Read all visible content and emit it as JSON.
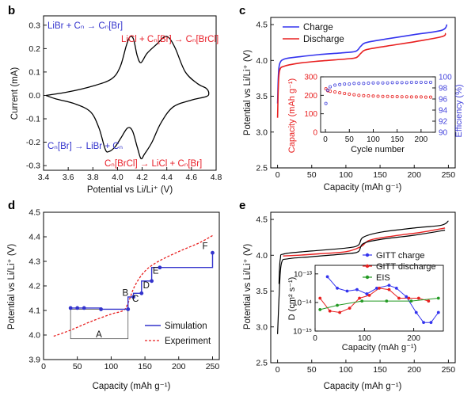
{
  "chart_data": [
    {
      "panel": "b",
      "type": "line",
      "xlabel": "Potential vs Li/Li⁺ (V)",
      "ylabel": "Current (mA)",
      "xlim": [
        3.4,
        4.8
      ],
      "ylim": [
        -0.32,
        0.34
      ],
      "xticks": [
        "3.4",
        "3.6",
        "3.8",
        "4.0",
        "4.2",
        "4.4",
        "4.6",
        "4.8"
      ],
      "yticks": [
        "0.3",
        "0.2",
        "0.1",
        "0.0",
        "-0.1",
        "-0.2",
        "-0.3"
      ],
      "colors": {
        "curve": "#000000",
        "blue_text": "#3333cc",
        "red_text": "#e8202a"
      },
      "annotations": {
        "top_left": "LiBr + Cₙ → Cₙ[Br]",
        "top_right": "LiCl + Cₙ[Br] → Cₙ[BrCl]",
        "bottom_left": "Cₙ[Br] → LiBr + Cₙ",
        "bottom_right": "Cₙ[BrCl] → LiCl + Cₙ[Br]"
      },
      "series": [
        {
          "values": [
            [
              3.42,
              0.0
            ],
            [
              3.6,
              0.015
            ],
            [
              3.8,
              0.04
            ],
            [
              3.95,
              0.07
            ],
            [
              4.02,
              0.12
            ],
            [
              4.07,
              0.21
            ],
            [
              4.1,
              0.25
            ],
            [
              4.13,
              0.24
            ],
            [
              4.16,
              0.17
            ],
            [
              4.19,
              0.14
            ],
            [
              4.24,
              0.18
            ],
            [
              4.32,
              0.22
            ],
            [
              4.38,
              0.25
            ],
            [
              4.42,
              0.245
            ],
            [
              4.47,
              0.2
            ],
            [
              4.55,
              0.1
            ],
            [
              4.65,
              0.05
            ],
            [
              4.72,
              0.03
            ],
            [
              4.74,
              0.01
            ],
            [
              4.72,
              -0.005
            ],
            [
              4.6,
              -0.02
            ],
            [
              4.45,
              -0.05
            ],
            [
              4.35,
              -0.12
            ],
            [
              4.28,
              -0.2
            ],
            [
              4.22,
              -0.25
            ],
            [
              4.19,
              -0.27
            ],
            [
              4.16,
              -0.22
            ],
            [
              4.12,
              -0.15
            ],
            [
              4.08,
              -0.14
            ],
            [
              4.03,
              -0.18
            ],
            [
              3.98,
              -0.22
            ],
            [
              3.93,
              -0.24
            ],
            [
              3.9,
              -0.23
            ],
            [
              3.85,
              -0.14
            ],
            [
              3.78,
              -0.07
            ],
            [
              3.65,
              -0.035
            ],
            [
              3.5,
              -0.015
            ],
            [
              3.42,
              0.0
            ]
          ]
        }
      ]
    },
    {
      "panel": "c",
      "type": "line",
      "xlabel": "Capacity (mAh g⁻¹)",
      "ylabel": "Potential vs Li/Li⁺ (V)",
      "xlim": [
        -10,
        260
      ],
      "ylim": [
        2.5,
        4.6
      ],
      "xticks": [
        "0",
        "50",
        "100",
        "150",
        "200",
        "250"
      ],
      "yticks": [
        "2.5",
        "3.0",
        "3.5",
        "4.0",
        "4.5"
      ],
      "legend": [
        "Charge",
        "Discharge"
      ],
      "legend_position": "top-left",
      "series": [
        {
          "name": "Charge",
          "color": "#3333ee",
          "values": [
            [
              0,
              3.4
            ],
            [
              1,
              3.75
            ],
            [
              3,
              3.95
            ],
            [
              10,
              4.02
            ],
            [
              30,
              4.05
            ],
            [
              60,
              4.08
            ],
            [
              100,
              4.11
            ],
            [
              115,
              4.13
            ],
            [
              122,
              4.2
            ],
            [
              130,
              4.25
            ],
            [
              160,
              4.3
            ],
            [
              200,
              4.36
            ],
            [
              240,
              4.42
            ],
            [
              248,
              4.5
            ]
          ]
        },
        {
          "name": "Discharge",
          "color": "#e82020",
          "values": [
            [
              0,
              3.2
            ],
            [
              1,
              3.6
            ],
            [
              3,
              3.86
            ],
            [
              10,
              3.92
            ],
            [
              30,
              3.96
            ],
            [
              60,
              3.99
            ],
            [
              100,
              4.02
            ],
            [
              115,
              4.04
            ],
            [
              122,
              4.1
            ],
            [
              130,
              4.15
            ],
            [
              160,
              4.2
            ],
            [
              200,
              4.26
            ],
            [
              240,
              4.33
            ],
            [
              246,
              4.38
            ]
          ]
        }
      ]
    },
    {
      "panel": "c-inset",
      "type": "scatter",
      "xlabel": "Cycle number",
      "ylabel": "Capacity (mAh g⁻¹)",
      "ylabel_right": "Efficiency (%)",
      "xlim": [
        -10,
        230
      ],
      "ylim": [
        0,
        300
      ],
      "ylim_right": [
        90,
        100
      ],
      "xticks": [
        "0",
        "50",
        "100",
        "150",
        "200"
      ],
      "yticks": [
        "0",
        "100",
        "200",
        "300"
      ],
      "yticks_right": [
        "90",
        "92",
        "94",
        "96",
        "98",
        "100"
      ],
      "series": [
        {
          "name": "Capacity",
          "color": "#e82020",
          "values": [
            [
              1,
              235
            ],
            [
              5,
              225
            ],
            [
              10,
              222
            ],
            [
              20,
              218
            ],
            [
              30,
              214
            ],
            [
              40,
              210
            ],
            [
              50,
              206
            ],
            [
              60,
              203
            ],
            [
              70,
              200
            ],
            [
              80,
              198
            ],
            [
              90,
              197
            ],
            [
              100,
              196
            ],
            [
              110,
              195
            ],
            [
              120,
              194
            ],
            [
              130,
              194
            ],
            [
              140,
              193
            ],
            [
              150,
              193
            ],
            [
              160,
              192
            ],
            [
              170,
              192
            ],
            [
              180,
              191
            ],
            [
              190,
              191
            ],
            [
              200,
              191
            ],
            [
              210,
              190
            ],
            [
              220,
              190
            ]
          ]
        },
        {
          "name": "Efficiency",
          "color": "#4444dd",
          "values": [
            [
              1,
              95.2
            ],
            [
              5,
              97.6
            ],
            [
              10,
              98.2
            ],
            [
              20,
              98.5
            ],
            [
              30,
              98.6
            ],
            [
              40,
              98.7
            ],
            [
              50,
              98.7
            ],
            [
              60,
              98.8
            ],
            [
              70,
              98.8
            ],
            [
              80,
              98.8
            ],
            [
              90,
              98.85
            ],
            [
              100,
              98.9
            ],
            [
              110,
              98.9
            ],
            [
              120,
              98.9
            ],
            [
              130,
              98.9
            ],
            [
              140,
              98.95
            ],
            [
              150,
              98.95
            ],
            [
              160,
              98.95
            ],
            [
              170,
              98.95
            ],
            [
              180,
              99.0
            ],
            [
              190,
              99.0
            ],
            [
              200,
              99.0
            ],
            [
              210,
              99.0
            ],
            [
              220,
              99.0
            ]
          ]
        }
      ]
    },
    {
      "panel": "d",
      "type": "line",
      "xlabel": "Capacity (mAh g⁻¹)",
      "ylabel": "Potential vs Li/Li⁺ (V)",
      "xlim": [
        0,
        260
      ],
      "ylim": [
        3.9,
        4.5
      ],
      "xticks": [
        "0",
        "50",
        "100",
        "150",
        "200",
        "250"
      ],
      "yticks": [
        "3.9",
        "4.0",
        "4.1",
        "4.2",
        "4.3",
        "4.4",
        "4.5"
      ],
      "legend": [
        "Simulation",
        "Experiment"
      ],
      "legend_position": "bottom-right",
      "step_labels": [
        "A",
        "B",
        "C",
        "D",
        "E",
        "F"
      ],
      "series": [
        {
          "name": "Simulation",
          "color": "#3333cc",
          "points": [
            [
              40,
              4.11
            ],
            [
              50,
              4.11
            ],
            [
              60,
              4.11
            ],
            [
              85,
              4.105
            ],
            [
              125,
              4.105
            ],
            [
              133,
              4.155
            ],
            [
              145,
              4.17
            ],
            [
              160,
              4.22
            ],
            [
              172,
              4.275
            ],
            [
              250,
              4.335
            ]
          ],
          "step_path": [
            [
              40,
              4.11
            ],
            [
              85,
              4.11
            ],
            [
              85,
              4.105
            ],
            [
              125,
              4.105
            ],
            [
              125,
              4.155
            ],
            [
              133,
              4.155
            ],
            [
              133,
              4.17
            ],
            [
              145,
              4.17
            ],
            [
              145,
              4.22
            ],
            [
              160,
              4.22
            ],
            [
              160,
              4.275
            ],
            [
              172,
              4.275
            ],
            [
              250,
              4.275
            ],
            [
              250,
              4.335
            ]
          ]
        },
        {
          "name": "Experiment",
          "color": "#e82020",
          "dashed": true,
          "values": [
            [
              15,
              3.995
            ],
            [
              40,
              4.02
            ],
            [
              70,
              4.055
            ],
            [
              100,
              4.085
            ],
            [
              118,
              4.1
            ],
            [
              125,
              4.13
            ],
            [
              135,
              4.2
            ],
            [
              150,
              4.26
            ],
            [
              170,
              4.3
            ],
            [
              200,
              4.34
            ],
            [
              230,
              4.375
            ],
            [
              250,
              4.405
            ]
          ]
        }
      ]
    },
    {
      "panel": "e",
      "type": "line",
      "xlabel": "Capacity (mAh g⁻¹)",
      "ylabel": "Potential vs Li/Li⁺ (V)",
      "xlim": [
        -10,
        260
      ],
      "ylim": [
        2.5,
        4.6
      ],
      "xticks": [
        "0",
        "50",
        "100",
        "150",
        "200",
        "250"
      ],
      "yticks": [
        "2.5",
        "3.0",
        "3.5",
        "4.0",
        "4.5"
      ],
      "series": [
        {
          "name": "upper-black",
          "color": "#000000",
          "values": [
            [
              2,
              3.6
            ],
            [
              4,
              3.95
            ],
            [
              10,
              4.02
            ],
            [
              50,
              4.06
            ],
            [
              100,
              4.1
            ],
            [
              118,
              4.14
            ],
            [
              125,
              4.25
            ],
            [
              150,
              4.32
            ],
            [
              200,
              4.38
            ],
            [
              240,
              4.42
            ],
            [
              250,
              4.48
            ]
          ]
        },
        {
          "name": "red-middle",
          "color": "#e82020",
          "values": [
            [
              8,
              3.99
            ],
            [
              30,
              4.0
            ],
            [
              60,
              4.02
            ],
            [
              100,
              4.05
            ],
            [
              122,
              4.12
            ],
            [
              135,
              4.21
            ],
            [
              170,
              4.27
            ],
            [
              210,
              4.32
            ],
            [
              245,
              4.38
            ]
          ]
        },
        {
          "name": "lower-black",
          "color": "#000000",
          "values": [
            [
              0,
              2.9
            ],
            [
              3,
              3.6
            ],
            [
              6,
              3.9
            ],
            [
              15,
              3.95
            ],
            [
              50,
              3.98
            ],
            [
              100,
              4.02
            ],
            [
              118,
              4.05
            ],
            [
              125,
              4.16
            ],
            [
              150,
              4.22
            ],
            [
              200,
              4.28
            ],
            [
              245,
              4.35
            ]
          ]
        }
      ]
    },
    {
      "panel": "e-inset",
      "type": "line",
      "xlabel": "Capacity (mAh g⁻¹)",
      "ylabel": "D (cm² s⁻¹)",
      "xlim": [
        0,
        260
      ],
      "ylim_log10": [
        -15,
        -12.7
      ],
      "xticks": [
        "0",
        "100",
        "200"
      ],
      "yticks": [
        "10⁻¹³",
        "10⁻¹⁴",
        "10⁻¹⁵"
      ],
      "legend": [
        "GITT charge",
        "GITT discharge",
        "EIS"
      ],
      "series": [
        {
          "name": "GITT charge",
          "color": "#3333ee",
          "values": [
            [
              25,
              -13.1
            ],
            [
              45,
              -13.5
            ],
            [
              65,
              -13.6
            ],
            [
              85,
              -13.55
            ],
            [
              105,
              -13.7
            ],
            [
              125,
              -13.5
            ],
            [
              150,
              -13.4
            ],
            [
              165,
              -13.5
            ],
            [
              185,
              -13.8
            ],
            [
              205,
              -14.35
            ],
            [
              220,
              -14.7
            ],
            [
              235,
              -14.7
            ],
            [
              250,
              -14.35
            ]
          ]
        },
        {
          "name": "GITT discharge",
          "color": "#e82020",
          "values": [
            [
              10,
              -13.85
            ],
            [
              30,
              -14.3
            ],
            [
              50,
              -14.35
            ],
            [
              70,
              -14.2
            ],
            [
              90,
              -13.85
            ],
            [
              110,
              -13.75
            ],
            [
              130,
              -13.5
            ],
            [
              150,
              -13.55
            ],
            [
              170,
              -13.85
            ],
            [
              190,
              -13.85
            ],
            [
              210,
              -13.85
            ],
            [
              230,
              -13.95
            ]
          ]
        },
        {
          "name": "EIS",
          "color": "#229922",
          "values": [
            [
              10,
              -14.25
            ],
            [
              45,
              -14.1
            ],
            [
              95,
              -13.95
            ],
            [
              145,
              -13.95
            ],
            [
              195,
              -13.95
            ],
            [
              250,
              -13.85
            ]
          ]
        }
      ]
    }
  ]
}
